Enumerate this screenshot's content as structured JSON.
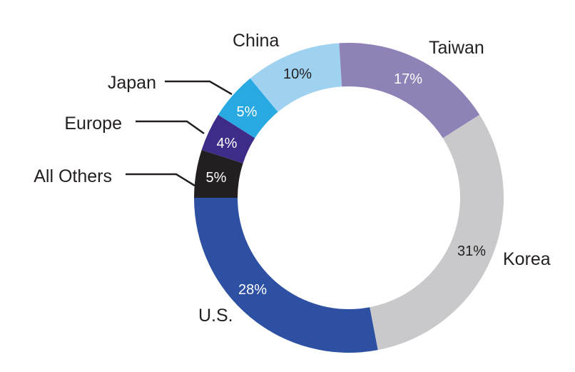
{
  "chart_data": {
    "type": "pie",
    "donut": true,
    "start": "9 o'clock, clockwise",
    "legend": "none",
    "slices": [
      {
        "label": "All Others",
        "value": 5,
        "value_label": "5%",
        "color": "#231f20",
        "text_color": "#ffffff"
      },
      {
        "label": "Europe",
        "value": 4,
        "value_label": "4%",
        "color": "#3f2b88",
        "text_color": "#ffffff"
      },
      {
        "label": "Japan",
        "value": 5,
        "value_label": "5%",
        "color": "#29a9e1",
        "text_color": "#ffffff"
      },
      {
        "label": "China",
        "value": 10,
        "value_label": "10%",
        "color": "#9fd1f0",
        "text_color": "#231f20"
      },
      {
        "label": "Taiwan",
        "value": 17,
        "value_label": "17%",
        "color": "#8e82b6",
        "text_color": "#ffffff"
      },
      {
        "label": "Korea",
        "value": 31,
        "value_label": "31%",
        "color": "#c9c9cb",
        "text_color": "#231f20"
      },
      {
        "label": "U.S.",
        "value": 28,
        "value_label": "28%",
        "color": "#2e50a3",
        "text_color": "#ffffff"
      }
    ]
  }
}
